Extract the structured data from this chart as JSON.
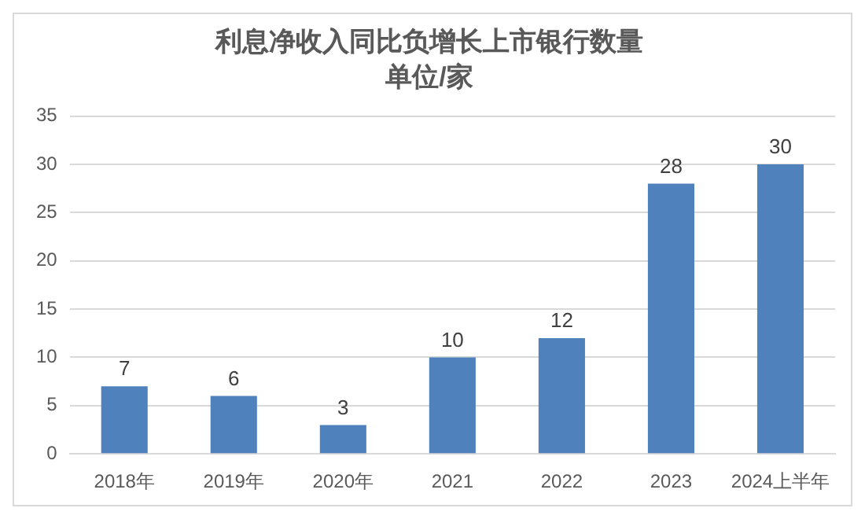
{
  "chart_data": {
    "type": "bar",
    "title": "利息净收入同比负增长上市银行数量",
    "subtitle": "单位/家",
    "categories": [
      "2018年",
      "2019年",
      "2020年",
      "2021",
      "2022",
      "2023",
      "2024上半年"
    ],
    "values": [
      7,
      6,
      3,
      10,
      12,
      28,
      30
    ],
    "color": "#4f81bd",
    "ylim": [
      0,
      35
    ],
    "yticks": [
      0,
      5,
      10,
      15,
      20,
      25,
      30,
      35
    ],
    "grid": "y",
    "data_labels": true
  }
}
